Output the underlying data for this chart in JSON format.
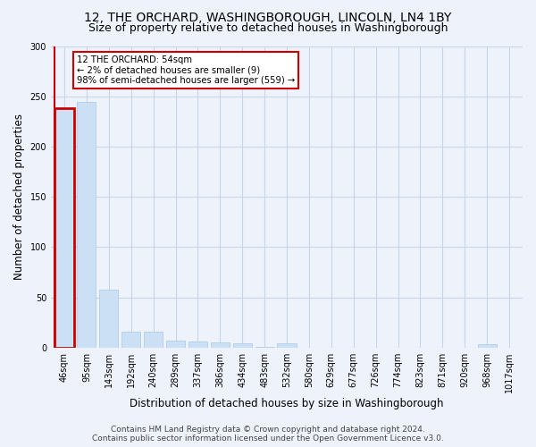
{
  "title": "12, THE ORCHARD, WASHINGBOROUGH, LINCOLN, LN4 1BY",
  "subtitle": "Size of property relative to detached houses in Washingborough",
  "xlabel": "Distribution of detached houses by size in Washingborough",
  "ylabel": "Number of detached properties",
  "bar_color": "#cce0f5",
  "bar_edge_color": "#a8c8e8",
  "highlight_bar_edge_color": "#cc0000",
  "annotation_text": "12 THE ORCHARD: 54sqm\n← 2% of detached houses are smaller (9)\n98% of semi-detached houses are larger (559) →",
  "annotation_box_color": "white",
  "annotation_box_edge_color": "#cc0000",
  "categories": [
    "46sqm",
    "95sqm",
    "143sqm",
    "192sqm",
    "240sqm",
    "289sqm",
    "337sqm",
    "386sqm",
    "434sqm",
    "483sqm",
    "532sqm",
    "580sqm",
    "629sqm",
    "677sqm",
    "726sqm",
    "774sqm",
    "823sqm",
    "871sqm",
    "920sqm",
    "968sqm",
    "1017sqm"
  ],
  "values": [
    238,
    244,
    58,
    16,
    16,
    7,
    6,
    5,
    4,
    1,
    4,
    0,
    0,
    0,
    0,
    0,
    0,
    0,
    0,
    3,
    0
  ],
  "highlight_index": 0,
  "ylim": [
    0,
    300
  ],
  "yticks": [
    0,
    50,
    100,
    150,
    200,
    250,
    300
  ],
  "footer_line1": "Contains HM Land Registry data © Crown copyright and database right 2024.",
  "footer_line2": "Contains public sector information licensed under the Open Government Licence v3.0.",
  "bg_color": "#eef2fb",
  "grid_color": "#c8d4e8",
  "title_fontsize": 10,
  "subtitle_fontsize": 9,
  "axis_label_fontsize": 8.5,
  "tick_fontsize": 7,
  "footer_fontsize": 6.5
}
